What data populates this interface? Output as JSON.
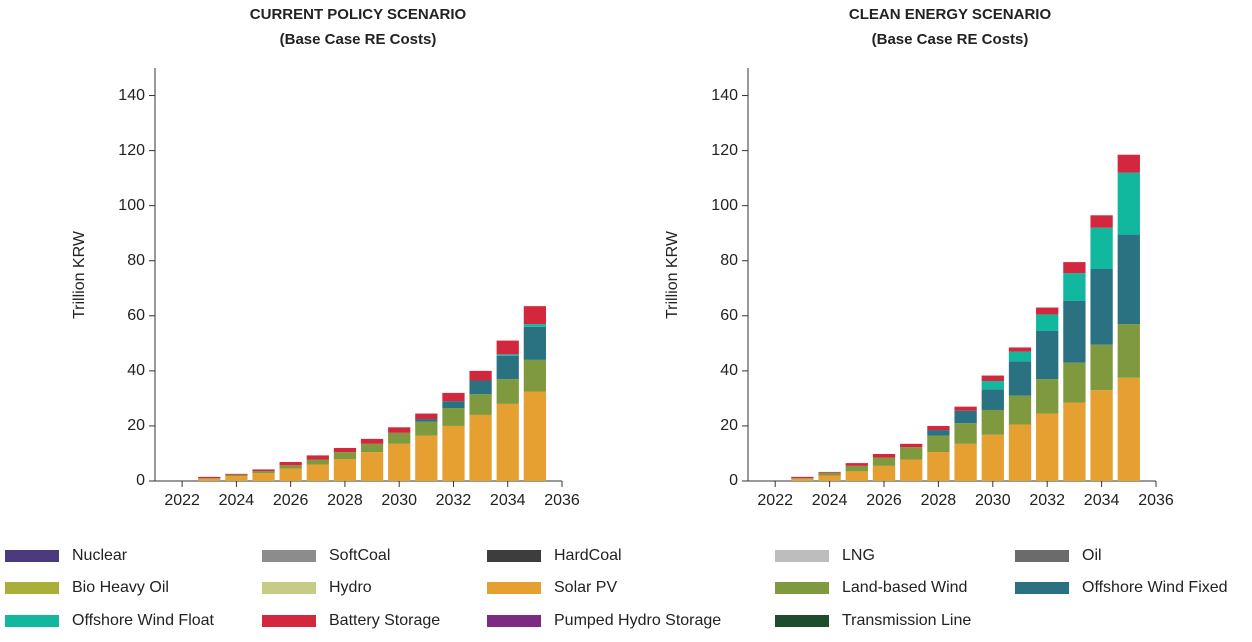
{
  "chart_data": [
    {
      "type": "bar",
      "stacked": true,
      "title": "CURRENT POLICY SCENARIO",
      "subtitle": "(Base Case RE Costs)",
      "y_label": "Trillion KRW",
      "x": [
        2023,
        2024,
        2025,
        2026,
        2027,
        2028,
        2029,
        2030,
        2031,
        2032,
        2033,
        2034,
        2035
      ],
      "xlim": [
        2021,
        2036
      ],
      "xticks": [
        2022,
        2024,
        2026,
        2028,
        2030,
        2032,
        2034,
        2036
      ],
      "ylim": [
        0,
        150
      ],
      "yticks": [
        0,
        20,
        40,
        60,
        80,
        100,
        120,
        140
      ],
      "series": [
        {
          "name": "Nuclear",
          "color": "#4b3a7c",
          "values": [
            0,
            0,
            0,
            0,
            0,
            0,
            0,
            0,
            0,
            0,
            0,
            0,
            0
          ]
        },
        {
          "name": "SoftCoal",
          "color": "#8c8c8c",
          "values": [
            0,
            0,
            0,
            0,
            0,
            0,
            0,
            0,
            0,
            0,
            0,
            0,
            0
          ]
        },
        {
          "name": "HardCoal",
          "color": "#3d3d3d",
          "values": [
            0,
            0,
            0,
            0,
            0,
            0,
            0,
            0,
            0,
            0,
            0,
            0,
            0
          ]
        },
        {
          "name": "LNG",
          "color": "#bdbdbd",
          "values": [
            0,
            0,
            0,
            0,
            0,
            0,
            0,
            0,
            0,
            0,
            0,
            0,
            0
          ]
        },
        {
          "name": "Oil",
          "color": "#6b6b6b",
          "values": [
            0,
            0,
            0,
            0,
            0,
            0,
            0,
            0,
            0,
            0,
            0,
            0,
            0
          ]
        },
        {
          "name": "Bio Heavy Oil",
          "color": "#a9b03a",
          "values": [
            0,
            0,
            0,
            0,
            0,
            0,
            0,
            0,
            0,
            0,
            0,
            0,
            0
          ]
        },
        {
          "name": "Hydro",
          "color": "#c6cc85",
          "values": [
            0,
            0,
            0,
            0,
            0,
            0,
            0,
            0,
            0,
            0,
            0,
            0,
            0
          ]
        },
        {
          "name": "Solar PV",
          "color": "#e6a032",
          "values": [
            0.8,
            1.8,
            2.8,
            4.5,
            6,
            8,
            10.5,
            13.5,
            16.5,
            20,
            24,
            28,
            32.5
          ]
        },
        {
          "name": "Land-based Wind",
          "color": "#7f9a3e",
          "values": [
            0.2,
            0.5,
            0.8,
            1.2,
            1.8,
            2.5,
            3,
            4,
            5,
            6.5,
            7.5,
            9,
            11.5
          ]
        },
        {
          "name": "Offshore Wind Fixed",
          "color": "#2a7282",
          "values": [
            0,
            0,
            0,
            0,
            0,
            0,
            0,
            0,
            1,
            2.5,
            5,
            8.5,
            12
          ]
        },
        {
          "name": "Offshore Wind Float",
          "color": "#12b89e",
          "values": [
            0,
            0,
            0,
            0,
            0,
            0,
            0,
            0,
            0,
            0,
            0,
            0.5,
            1
          ]
        },
        {
          "name": "Battery Storage",
          "color": "#d3273e",
          "values": [
            0.5,
            0.3,
            0.6,
            1.2,
            1.5,
            1.5,
            1.8,
            2,
            2,
            3,
            3.5,
            5,
            6.5
          ]
        },
        {
          "name": "Pumped Hydro Storage",
          "color": "#7d2a82",
          "values": [
            0,
            0,
            0,
            0,
            0,
            0,
            0,
            0,
            0,
            0,
            0,
            0,
            0
          ]
        },
        {
          "name": "Transmission Line",
          "color": "#1e4d2b",
          "values": [
            0,
            0,
            0,
            0,
            0,
            0,
            0,
            0,
            0,
            0,
            0,
            0,
            0
          ]
        }
      ]
    },
    {
      "type": "bar",
      "stacked": true,
      "title": "CLEAN ENERGY SCENARIO",
      "subtitle": "(Base Case RE Costs)",
      "y_label": "Trillion KRW",
      "x": [
        2023,
        2024,
        2025,
        2026,
        2027,
        2028,
        2029,
        2030,
        2031,
        2032,
        2033,
        2034,
        2035
      ],
      "xlim": [
        2021,
        2036
      ],
      "xticks": [
        2022,
        2024,
        2026,
        2028,
        2030,
        2032,
        2034,
        2036
      ],
      "ylim": [
        0,
        150
      ],
      "yticks": [
        0,
        20,
        40,
        60,
        80,
        100,
        120,
        140
      ],
      "series": [
        {
          "name": "Nuclear",
          "color": "#4b3a7c",
          "values": [
            0,
            0,
            0,
            0,
            0,
            0,
            0,
            0,
            0,
            0,
            0,
            0,
            0
          ]
        },
        {
          "name": "SoftCoal",
          "color": "#8c8c8c",
          "values": [
            0,
            0,
            0,
            0,
            0,
            0,
            0,
            0,
            0,
            0,
            0,
            0,
            0
          ]
        },
        {
          "name": "HardCoal",
          "color": "#3d3d3d",
          "values": [
            0,
            0,
            0,
            0,
            0,
            0,
            0,
            0,
            0,
            0,
            0,
            0,
            0
          ]
        },
        {
          "name": "LNG",
          "color": "#bdbdbd",
          "values": [
            0,
            0,
            0,
            0,
            0,
            0,
            0,
            0,
            0,
            0,
            0,
            0,
            0
          ]
        },
        {
          "name": "Oil",
          "color": "#6b6b6b",
          "values": [
            0,
            0,
            0,
            0,
            0,
            0,
            0,
            0,
            0,
            0,
            0,
            0,
            0
          ]
        },
        {
          "name": "Bio Heavy Oil",
          "color": "#a9b03a",
          "values": [
            0,
            0,
            0,
            0,
            0,
            0,
            0,
            0,
            0,
            0,
            0,
            0,
            0
          ]
        },
        {
          "name": "Hydro",
          "color": "#c6cc85",
          "values": [
            0,
            0,
            0,
            0,
            0,
            0,
            0,
            0,
            0,
            0,
            0,
            0,
            0
          ]
        },
        {
          "name": "Solar PV",
          "color": "#e6a032",
          "values": [
            0.8,
            2,
            3.5,
            5.5,
            7.8,
            10.5,
            13.5,
            16.8,
            20.5,
            24.5,
            28.5,
            33,
            37.5
          ]
        },
        {
          "name": "Land-based Wind",
          "color": "#7f9a3e",
          "values": [
            0.2,
            1,
            2,
            3,
            4.5,
            6,
            7.5,
            9,
            10.5,
            12.5,
            14.5,
            16.5,
            19.5
          ]
        },
        {
          "name": "Offshore Wind Fixed",
          "color": "#2a7282",
          "values": [
            0,
            0,
            0,
            0,
            0,
            2,
            4.5,
            7.5,
            12.5,
            17.5,
            22.5,
            27.5,
            32.5
          ]
        },
        {
          "name": "Offshore Wind Float",
          "color": "#12b89e",
          "values": [
            0,
            0,
            0,
            0,
            0,
            0,
            0,
            3,
            3.5,
            6,
            10,
            15,
            22.5
          ]
        },
        {
          "name": "Battery Storage",
          "color": "#d3273e",
          "values": [
            0.5,
            0.3,
            1,
            1.3,
            1.2,
            1.5,
            1.5,
            2,
            1.5,
            2.5,
            4,
            4.5,
            6.5
          ]
        },
        {
          "name": "Pumped Hydro Storage",
          "color": "#7d2a82",
          "values": [
            0,
            0,
            0,
            0,
            0,
            0,
            0,
            0,
            0,
            0,
            0,
            0,
            0
          ]
        },
        {
          "name": "Transmission Line",
          "color": "#1e4d2b",
          "values": [
            0,
            0,
            0,
            0,
            0,
            0,
            0,
            0,
            0,
            0,
            0,
            0,
            0
          ]
        }
      ]
    }
  ]
}
